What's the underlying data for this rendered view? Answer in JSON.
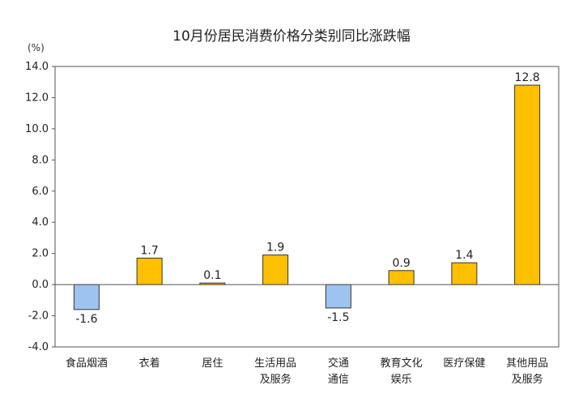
{
  "chart_data": {
    "type": "bar",
    "title": "10月份居民消费价格分类别同比涨跌幅",
    "unit_label": "(%)",
    "xlabel": "",
    "ylabel": "",
    "ylim": [
      -4,
      14
    ],
    "yticks": [
      "14.0",
      "12.0",
      "10.0",
      "8.0",
      "6.0",
      "4.0",
      "2.0",
      "0.0",
      "-2.0",
      "-4.0"
    ],
    "ytick_values": [
      14,
      12,
      10,
      8,
      6,
      4,
      2,
      0,
      -2,
      -4
    ],
    "grid": false,
    "legend": "none",
    "categories": [
      [
        "食品烟酒"
      ],
      [
        "衣着"
      ],
      [
        "居住"
      ],
      [
        "生活用品",
        "及服务"
      ],
      [
        "交通",
        "通信"
      ],
      [
        "教育文化",
        "娱乐"
      ],
      [
        "医疗保健"
      ],
      [
        "其他用品",
        "及服务"
      ]
    ],
    "values": [
      -1.6,
      1.7,
      0.1,
      1.9,
      -1.5,
      0.9,
      1.4,
      12.8
    ],
    "value_labels": [
      "-1.6",
      "1.7",
      "0.1",
      "1.9",
      "-1.5",
      "0.9",
      "1.4",
      "12.8"
    ],
    "colors": {
      "positive_fill": "#FFC000",
      "negative_fill": "#9DC3F0",
      "bar_stroke": "#333333",
      "axis": "#555555"
    }
  }
}
